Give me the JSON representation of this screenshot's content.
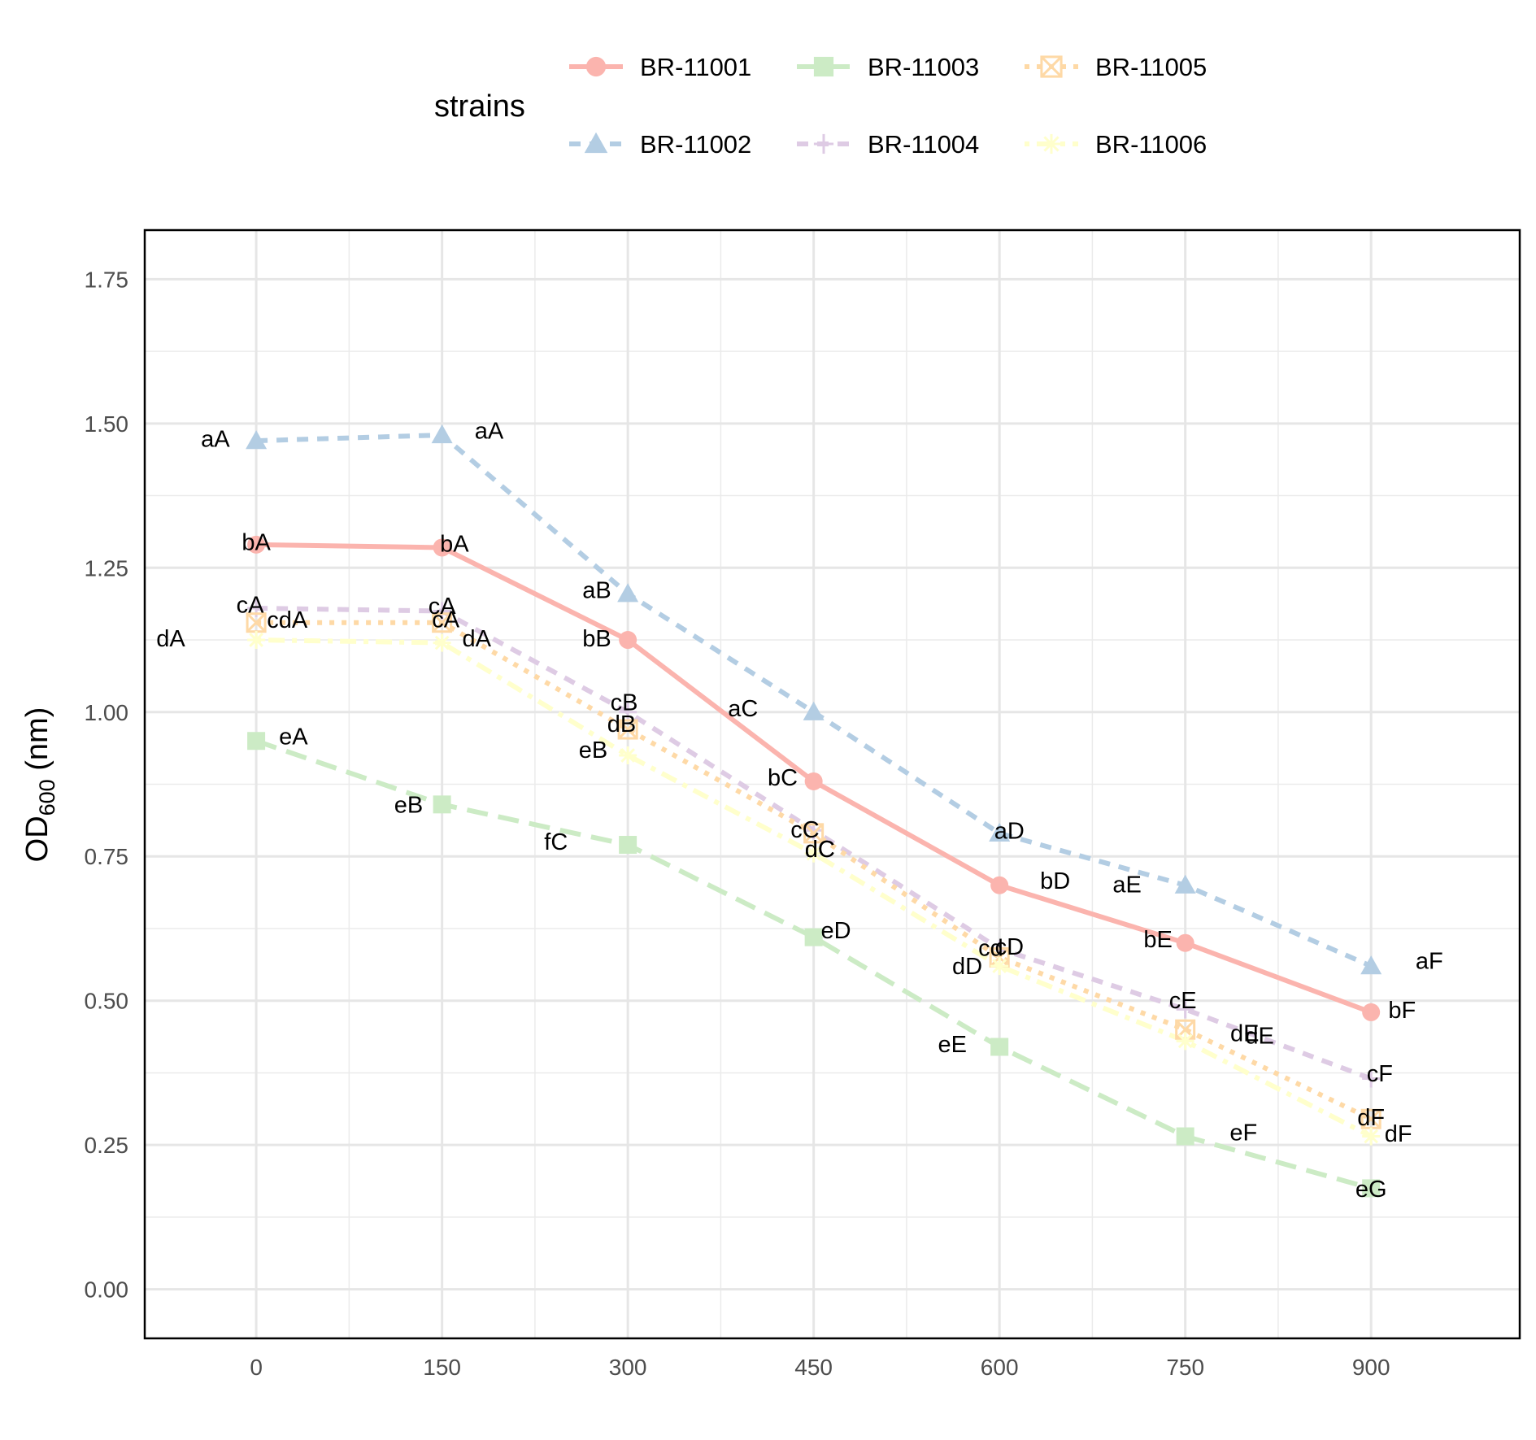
{
  "chart_data": {
    "type": "line",
    "xlabel": "",
    "ylabel": "OD",
    "ylabel_subscript": "600",
    "ylabel_suffix": " (nm)",
    "xlim": [
      -90,
      1020
    ],
    "ylim": [
      -0.085,
      1.835
    ],
    "x_ticks": [
      0,
      150,
      300,
      450,
      600,
      750,
      900
    ],
    "x_tick_labels": [
      "0",
      "150",
      "300",
      "450",
      "600",
      "750",
      "900"
    ],
    "y_ticks": [
      0,
      0.25,
      0.5,
      0.75,
      1.0,
      1.25,
      1.5,
      1.75
    ],
    "y_tick_labels": [
      "0.00",
      "0.25",
      "0.50",
      "0.75",
      "1.00",
      "1.25",
      "1.50",
      "1.75"
    ],
    "grid": true,
    "legend": {
      "title": "strains",
      "placement": "top",
      "entries": [
        "BR-11001",
        "BR-11003",
        "BR-11005",
        "BR-11002",
        "BR-11004",
        "BR-11006"
      ]
    },
    "x": [
      0,
      150,
      300,
      450,
      600,
      750,
      900
    ],
    "series": [
      {
        "name": "BR-11001",
        "color": "#fbb4ae",
        "marker": "circle",
        "dash": "solid",
        "values": [
          1.29,
          1.285,
          1.125,
          0.88,
          0.7,
          0.6,
          0.48
        ],
        "labels": [
          "bA",
          "bA",
          "bB",
          "bC",
          "bD",
          "bE",
          "bF"
        ],
        "label_pos": [
          [
            0,
            1.295
          ],
          [
            160,
            1.292
          ],
          [
            275,
            1.128
          ],
          [
            425,
            0.887
          ],
          [
            645,
            0.708
          ],
          [
            728,
            0.607
          ],
          [
            925,
            0.484
          ]
        ]
      },
      {
        "name": "BR-11002",
        "color": "#b3cde3",
        "marker": "triangle",
        "dash": "dashed",
        "values": [
          1.47,
          1.48,
          1.205,
          1.0,
          0.79,
          0.7,
          0.56
        ],
        "labels": [
          "aA",
          "aA",
          "aB",
          "aC",
          "aD",
          "aE",
          "aF"
        ],
        "label_pos": [
          [
            -33,
            1.474
          ],
          [
            188,
            1.488
          ],
          [
            275,
            1.212
          ],
          [
            393,
            1.007
          ],
          [
            608,
            0.795
          ],
          [
            703,
            0.702
          ],
          [
            947,
            0.569
          ]
        ]
      },
      {
        "name": "BR-11003",
        "color": "#ccebc5",
        "marker": "square",
        "dash": "longdash",
        "values": [
          0.95,
          0.84,
          0.77,
          0.61,
          0.42,
          0.265,
          0.175
        ],
        "labels": [
          "eA",
          "eB",
          "fC",
          "eD",
          "eE",
          "eF",
          "eG"
        ],
        "label_pos": [
          [
            30,
            0.958
          ],
          [
            123,
            0.84
          ],
          [
            242,
            0.776
          ],
          [
            468,
            0.622
          ],
          [
            562,
            0.425
          ],
          [
            797,
            0.272
          ],
          [
            900,
            0.174
          ]
        ]
      },
      {
        "name": "BR-11004",
        "color": "#decbe4",
        "marker": "plus",
        "dash": "dashed",
        "values": [
          1.18,
          1.175,
          1.0,
          0.795,
          0.59,
          0.485,
          0.365
        ],
        "labels": [
          "cA",
          "cA",
          "cB",
          "cC",
          "cD",
          "cE",
          "cF"
        ],
        "label_pos": [
          [
            -5,
            1.186
          ],
          [
            150,
            1.184
          ],
          [
            297,
            1.017
          ],
          [
            443,
            0.797
          ],
          [
            608,
            0.594
          ],
          [
            748,
            0.501
          ],
          [
            907,
            0.374
          ]
        ]
      },
      {
        "name": "BR-11005",
        "color": "#fed9a6",
        "marker": "square-x",
        "dash": "dotted",
        "values": [
          1.155,
          1.155,
          0.97,
          0.79,
          0.575,
          0.45,
          0.295
        ],
        "labels": [
          "cdA",
          "cA",
          "dB",
          "dC",
          "cd",
          "dE",
          "dF"
        ],
        "label_pos": [
          [
            25,
            1.16
          ],
          [
            153,
            1.161
          ],
          [
            295,
            0.98
          ],
          [
            455,
            0.763
          ],
          [
            593,
            0.592
          ],
          [
            798,
            0.444
          ],
          [
            900,
            0.298
          ]
        ]
      },
      {
        "name": "BR-11006",
        "color": "#ffffcc",
        "marker": "asterisk",
        "dash": "dotdash",
        "values": [
          1.125,
          1.12,
          0.925,
          0.755,
          0.56,
          0.43,
          0.265
        ],
        "labels": [
          "dA",
          "dA",
          "eB",
          "dC",
          "dD",
          "dE",
          "dF"
        ],
        "label_pos": [
          [
            -69,
            1.128
          ],
          [
            178,
            1.128
          ],
          [
            272,
            0.935
          ],
          [
            455,
            0.763
          ],
          [
            574,
            0.56
          ],
          [
            810,
            0.44
          ],
          [
            922,
            0.27
          ]
        ]
      }
    ]
  }
}
